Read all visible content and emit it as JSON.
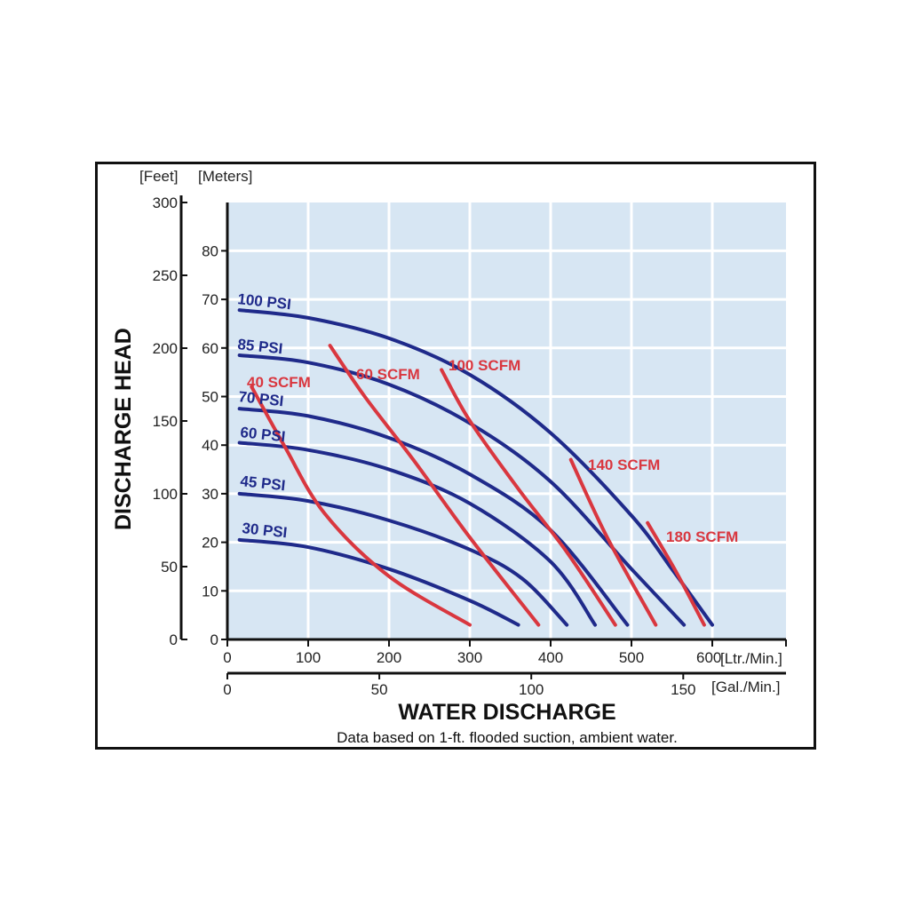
{
  "chart_data": {
    "type": "line",
    "title": "",
    "xlabel": "WATER DISCHARGE",
    "ylabel": "DISCHARGE HEAD",
    "note": "Data based on 1-ft. flooded suction, ambient water.",
    "x_axis_primary": {
      "unit_label": "[Ltr./Min.]",
      "range": [
        0,
        600
      ],
      "ticks": [
        "0",
        "100",
        "200",
        "300",
        "400",
        "500",
        "600"
      ]
    },
    "x_axis_secondary": {
      "unit_label": "[Gal./Min.]",
      "range": [
        0,
        158.5
      ],
      "ticks": [
        "0",
        "50",
        "100",
        "150"
      ]
    },
    "y_axis_meters": {
      "unit_label": "[Meters]",
      "range": [
        0,
        90
      ],
      "ticks": [
        "0",
        "10",
        "20",
        "30",
        "40",
        "50",
        "60",
        "70",
        "80"
      ]
    },
    "y_axis_feet": {
      "unit_label": "[Feet]",
      "range": [
        0,
        300
      ],
      "ticks": [
        "0",
        "50",
        "100",
        "150",
        "200",
        "250",
        "300"
      ]
    },
    "grid": true,
    "colors": {
      "background": "#d7e6f3",
      "grid": "#ffffff",
      "psi": "#1f2a8a",
      "scfm": "#d9373f"
    },
    "pressure_series": [
      {
        "name": "100 PSI",
        "label": "100 PSI",
        "x": [
          15,
          100,
          200,
          300,
          400,
          500,
          550,
          600
        ],
        "y": [
          67.8,
          66.2,
          62,
          54.5,
          42.5,
          25.5,
          14.5,
          3
        ]
      },
      {
        "name": "85 PSI",
        "label": "85 PSI",
        "x": [
          15,
          100,
          200,
          300,
          400,
          500,
          565
        ],
        "y": [
          58.5,
          57,
          52.5,
          44.5,
          32.5,
          14.5,
          3
        ]
      },
      {
        "name": "70 PSI",
        "label": "70 PSI",
        "x": [
          15,
          100,
          200,
          300,
          400,
          495
        ],
        "y": [
          47.5,
          46,
          41.5,
          34,
          22.5,
          3
        ]
      },
      {
        "name": "60 PSI",
        "label": "60 PSI",
        "x": [
          15,
          100,
          200,
          300,
          400,
          455
        ],
        "y": [
          40.5,
          39,
          35,
          28,
          16,
          3
        ]
      },
      {
        "name": "45 PSI",
        "label": "45 PSI",
        "x": [
          15,
          100,
          200,
          300,
          365,
          420
        ],
        "y": [
          30,
          28.5,
          24.5,
          18.5,
          12.5,
          3
        ]
      },
      {
        "name": "30 PSI",
        "label": "30 PSI",
        "x": [
          15,
          100,
          200,
          300,
          360
        ],
        "y": [
          20.5,
          19,
          14.5,
          8,
          3
        ]
      }
    ],
    "air_series": [
      {
        "name": "40 SCFM",
        "label": "40 SCFM",
        "x": [
          30,
          70,
          120,
          200,
          300
        ],
        "y": [
          52,
          40,
          26,
          13,
          3
        ]
      },
      {
        "name": "60 SCFM",
        "label": "60 SCFM",
        "x": [
          127,
          170,
          230,
          300,
          385
        ],
        "y": [
          60.5,
          50,
          37,
          21,
          3
        ]
      },
      {
        "name": "100 SCFM",
        "label": "100 SCFM",
        "x": [
          265,
          300,
          360,
          420,
          480
        ],
        "y": [
          55.5,
          45,
          31,
          18,
          3
        ]
      },
      {
        "name": "140 SCFM",
        "label": "140 SCFM",
        "x": [
          425,
          470,
          530
        ],
        "y": [
          37,
          21,
          3
        ]
      },
      {
        "name": "180 SCFM",
        "label": "180 SCFM",
        "x": [
          520,
          555,
          590
        ],
        "y": [
          24,
          14,
          3
        ]
      }
    ]
  }
}
